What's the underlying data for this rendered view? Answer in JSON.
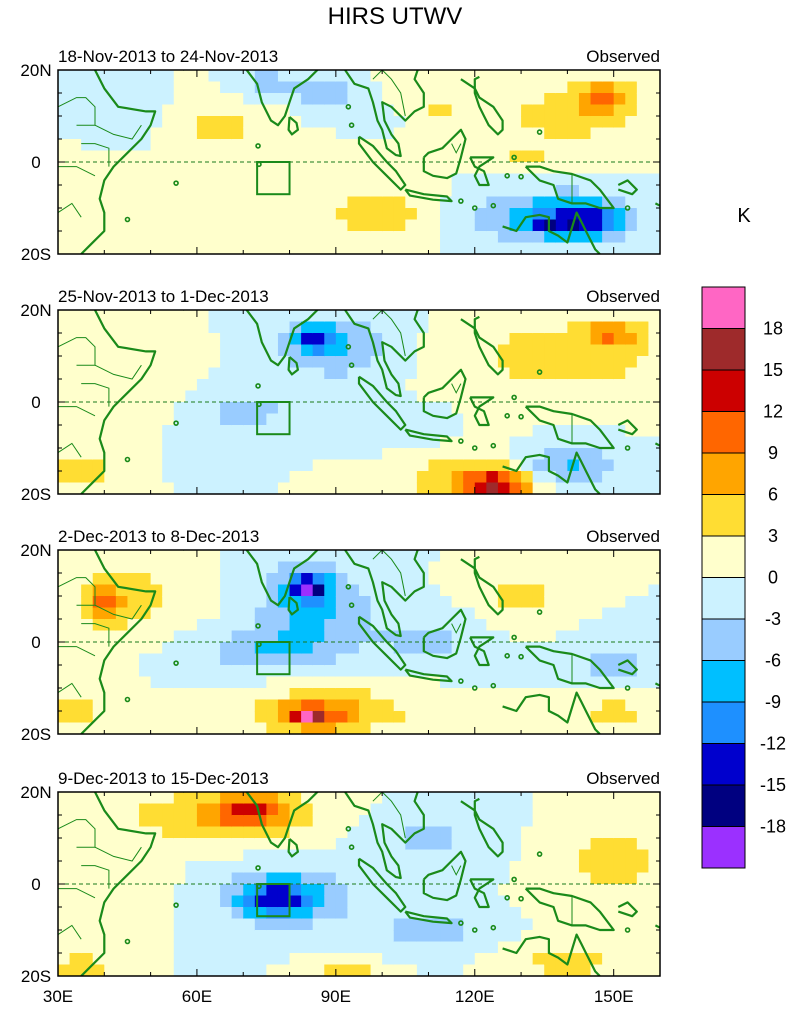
{
  "figure_title": "HIRS UTWV",
  "colorbar": {
    "unit": "K",
    "tick_labels": [
      "18",
      "15",
      "12",
      "9",
      "6",
      "3",
      "0",
      "-3",
      "-6",
      "-9",
      "-12",
      "-15",
      "-18"
    ],
    "colors": [
      "#ff66c4",
      "#9e2a2b",
      "#cc0000",
      "#ff6600",
      "#ffa500",
      "#ffdd33",
      "#ffffcc",
      "#ccf2ff",
      "#99ccff",
      "#00bfff",
      "#1e90ff",
      "#0000cd",
      "#000080",
      "#9b30ff"
    ]
  },
  "chart_data": [
    {
      "type": "heatmap",
      "title": "18-Nov-2013 to 24-Nov-2013",
      "subtitle": "Observed",
      "x_tick_labels": [
        "30E",
        "60E",
        "90E",
        "120E",
        "150E"
      ],
      "y_tick_labels": [
        "20N",
        "0",
        "20S"
      ],
      "xlim": [
        30,
        160
      ],
      "ylim": [
        -20,
        20
      ],
      "box": {
        "lon": [
          73,
          80
        ],
        "lat": [
          -7,
          0
        ]
      },
      "blobs": [
        {
          "lon": 65,
          "lat": 8,
          "rx": 12,
          "ry": 5,
          "v": 4
        },
        {
          "lon": 110,
          "lat": 12,
          "rx": 10,
          "ry": 6,
          "v": 3
        },
        {
          "lon": 140,
          "lat": 10,
          "rx": 18,
          "ry": 8,
          "v": 4
        },
        {
          "lon": 148,
          "lat": 14,
          "rx": 6,
          "ry": 4,
          "v": 7
        },
        {
          "lon": 100,
          "lat": -11,
          "rx": 14,
          "ry": 6,
          "v": 5
        },
        {
          "lon": 130,
          "lat": 0,
          "rx": 8,
          "ry": 3,
          "v": 3
        },
        {
          "lon": 88,
          "lat": 15,
          "rx": 7,
          "ry": 4,
          "v": -6
        },
        {
          "lon": 75,
          "lat": 17,
          "rx": 6,
          "ry": 3,
          "v": -5
        },
        {
          "lon": 100,
          "lat": 10,
          "rx": 5,
          "ry": 3,
          "v": -4
        },
        {
          "lon": 135,
          "lat": -12,
          "rx": 20,
          "ry": 6,
          "v": -7
        },
        {
          "lon": 143,
          "lat": -13,
          "rx": 8,
          "ry": 4,
          "v": -10
        },
        {
          "lon": 135,
          "lat": -13,
          "rx": 1.5,
          "ry": 1.2,
          "v": -15
        },
        {
          "lon": 40,
          "lat": -10,
          "rx": 8,
          "ry": 8,
          "v": 3
        },
        {
          "lon": 45,
          "lat": 10,
          "rx": 8,
          "ry": 5,
          "v": -3
        }
      ]
    },
    {
      "type": "heatmap",
      "title": "25-Nov-2013 to 1-Dec-2013",
      "subtitle": "Observed",
      "x_tick_labels": [
        "30E",
        "60E",
        "90E",
        "120E",
        "150E"
      ],
      "y_tick_labels": [
        "20N",
        "0",
        "20S"
      ],
      "xlim": [
        30,
        160
      ],
      "ylim": [
        -20,
        20
      ],
      "box": {
        "lon": [
          73,
          80
        ],
        "lat": [
          -7,
          0
        ]
      },
      "blobs": [
        {
          "lon": 140,
          "lat": 10,
          "rx": 22,
          "ry": 8,
          "v": 5
        },
        {
          "lon": 150,
          "lat": 15,
          "rx": 6,
          "ry": 3,
          "v": 7
        },
        {
          "lon": 120,
          "lat": -17,
          "rx": 15,
          "ry": 5,
          "v": 7
        },
        {
          "lon": 125,
          "lat": -18,
          "rx": 6,
          "ry": 3,
          "v": 11
        },
        {
          "lon": 48,
          "lat": 5,
          "rx": 10,
          "ry": 8,
          "v": 3
        },
        {
          "lon": 35,
          "lat": -15,
          "rx": 5,
          "ry": 4,
          "v": 7
        },
        {
          "lon": 90,
          "lat": 12,
          "rx": 12,
          "ry": 7,
          "v": -6
        },
        {
          "lon": 85,
          "lat": 14,
          "rx": 5,
          "ry": 3,
          "v": -9
        },
        {
          "lon": 140,
          "lat": -14,
          "rx": 12,
          "ry": 4,
          "v": -7
        },
        {
          "lon": 70,
          "lat": -2,
          "rx": 12,
          "ry": 6,
          "v": -4
        },
        {
          "lon": 100,
          "lat": -5,
          "rx": 10,
          "ry": 4,
          "v": -3
        }
      ]
    },
    {
      "type": "heatmap",
      "title": "2-Dec-2013 to 8-Dec-2013",
      "subtitle": "Observed",
      "x_tick_labels": [
        "30E",
        "60E",
        "90E",
        "120E",
        "150E"
      ],
      "y_tick_labels": [
        "20N",
        "0",
        "20S"
      ],
      "xlim": [
        30,
        160
      ],
      "ylim": [
        -20,
        20
      ],
      "box": {
        "lon": [
          73,
          80
        ],
        "lat": [
          -7,
          0
        ]
      },
      "blobs": [
        {
          "lon": 85,
          "lat": 8,
          "rx": 12,
          "ry": 10,
          "v": -7
        },
        {
          "lon": 84,
          "lat": 12,
          "rx": 4,
          "ry": 3,
          "v": -13
        },
        {
          "lon": 75,
          "lat": -2,
          "rx": 15,
          "ry": 5,
          "v": -5
        },
        {
          "lon": 110,
          "lat": 0,
          "rx": 12,
          "ry": 6,
          "v": -4
        },
        {
          "lon": 150,
          "lat": -5,
          "rx": 10,
          "ry": 6,
          "v": -4
        },
        {
          "lon": 90,
          "lat": -15,
          "rx": 20,
          "ry": 6,
          "v": 5
        },
        {
          "lon": 85,
          "lat": -16,
          "rx": 8,
          "ry": 3,
          "v": 9
        },
        {
          "lon": 84,
          "lat": -16,
          "rx": 2,
          "ry": 1.2,
          "v": 13
        },
        {
          "lon": 45,
          "lat": 10,
          "rx": 15,
          "ry": 8,
          "v": 4
        },
        {
          "lon": 40,
          "lat": 8,
          "rx": 4,
          "ry": 4,
          "v": 7
        },
        {
          "lon": 130,
          "lat": 10,
          "rx": 10,
          "ry": 6,
          "v": 4
        },
        {
          "lon": 150,
          "lat": -15,
          "rx": 10,
          "ry": 5,
          "v": 4
        },
        {
          "lon": 33,
          "lat": -15,
          "rx": 5,
          "ry": 5,
          "v": 5
        }
      ]
    },
    {
      "type": "heatmap",
      "title": "9-Dec-2013 to 15-Dec-2013",
      "subtitle": "Observed",
      "x_tick_labels": [
        "30E",
        "60E",
        "90E",
        "120E",
        "150E"
      ],
      "y_tick_labels": [
        "20N",
        "0",
        "20S"
      ],
      "xlim": [
        30,
        160
      ],
      "ylim": [
        -20,
        20
      ],
      "box": {
        "lon": [
          73,
          80
        ],
        "lat": [
          -7,
          0
        ]
      },
      "blobs": [
        {
          "lon": 65,
          "lat": 15,
          "rx": 20,
          "ry": 6,
          "v": 6
        },
        {
          "lon": 72,
          "lat": 16,
          "rx": 8,
          "ry": 4,
          "v": 8
        },
        {
          "lon": 150,
          "lat": 5,
          "rx": 12,
          "ry": 7,
          "v": 5
        },
        {
          "lon": 80,
          "lat": -3,
          "rx": 15,
          "ry": 7,
          "v": -6
        },
        {
          "lon": 77,
          "lat": -3,
          "rx": 8,
          "ry": 4,
          "v": -9
        },
        {
          "lon": 110,
          "lat": 10,
          "rx": 12,
          "ry": 6,
          "v": -4
        },
        {
          "lon": 110,
          "lat": -10,
          "rx": 10,
          "ry": 5,
          "v": -5
        },
        {
          "lon": 140,
          "lat": -17,
          "rx": 12,
          "ry": 3,
          "v": 5
        },
        {
          "lon": 92,
          "lat": -20,
          "rx": 8,
          "ry": 3,
          "v": 6
        },
        {
          "lon": 45,
          "lat": 0,
          "rx": 8,
          "ry": 8,
          "v": 3
        },
        {
          "lon": 35,
          "lat": -18,
          "rx": 6,
          "ry": 3,
          "v": 6
        }
      ]
    }
  ]
}
